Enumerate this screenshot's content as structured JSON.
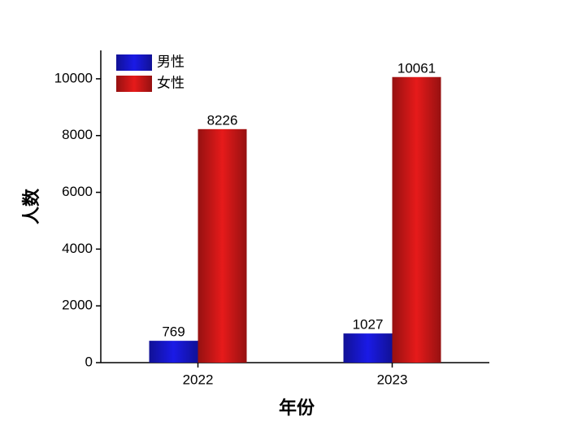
{
  "chart_data": {
    "type": "bar",
    "x_label": "年份",
    "y_label": "人数",
    "categories": [
      "2022",
      "2023"
    ],
    "series": [
      {
        "name": "男性",
        "color": "#1a1ae6",
        "values": [
          769,
          1027
        ]
      },
      {
        "name": "女性",
        "color": "#e61a1a",
        "values": [
          8226,
          10061
        ]
      }
    ],
    "ylim": [
      0,
      11000
    ],
    "yticks": [
      0,
      2000,
      4000,
      6000,
      8000,
      10000
    ],
    "legend": "upper-left",
    "data_labels": true
  }
}
